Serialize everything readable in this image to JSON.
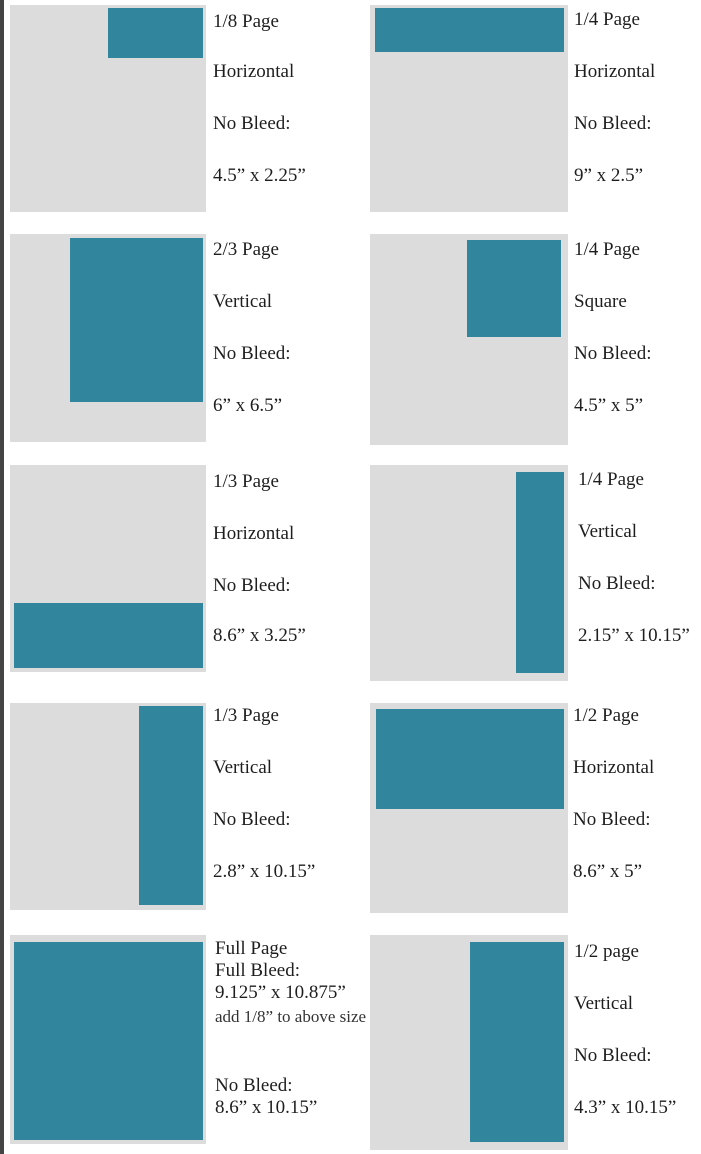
{
  "colors": {
    "page_bg": "#dcdcdc",
    "ad_fill": "#31859c"
  },
  "ads": [
    {
      "fraction": "1/8 Page",
      "orientation": "Horizontal",
      "bleed": "No Bleed:",
      "size": "4.5” x 2.25”"
    },
    {
      "fraction": "1/4 Page",
      "orientation": "Horizontal",
      "bleed": "No Bleed:",
      "size": "9” x 2.5”"
    },
    {
      "fraction": "2/3 Page",
      "orientation": "Vertical",
      "bleed": "No Bleed:",
      "size": "6” x 6.5”"
    },
    {
      "fraction": "1/4 Page",
      "orientation": "Square",
      "bleed": "No Bleed:",
      "size": "4.5” x 5”"
    },
    {
      "fraction": "1/3 Page",
      "orientation": "Horizontal",
      "bleed": "No Bleed:",
      "size": "8.6” x 3.25”"
    },
    {
      "fraction": "1/4 Page",
      "orientation": "Vertical",
      "bleed": "No Bleed:",
      "size": "2.15” x 10.15”"
    },
    {
      "fraction": "1/3 Page",
      "orientation": "Vertical",
      "bleed": "No Bleed:",
      "size": "2.8” x 10.15”"
    },
    {
      "fraction": "1/2 Page",
      "orientation": "Horizontal",
      "bleed": "No Bleed:",
      "size": "8.6” x 5”"
    },
    {
      "fraction": "Full Page",
      "bleed_label": "Full Bleed:",
      "bleed_size": "9.125” x 10.875”",
      "note": "add 1/8” to above size",
      "bleed": "No Bleed:",
      "size": "8.6” x 10.15”"
    },
    {
      "fraction": "1/2 page",
      "orientation": "Vertical",
      "bleed": "No Bleed:",
      "size": "4.3” x 10.15”"
    }
  ]
}
